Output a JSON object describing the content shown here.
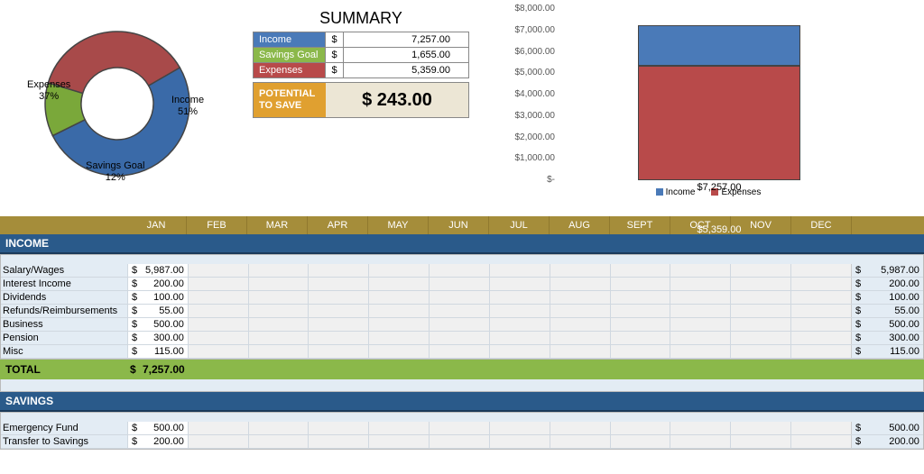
{
  "summary": {
    "title": "SUMMARY",
    "rows": [
      {
        "label": "Income",
        "value": "7,257.00",
        "bg": "#4a7ab8"
      },
      {
        "label": "Savings Goal",
        "value": "1,655.00",
        "bg": "#8bb84a"
      },
      {
        "label": "Expenses",
        "value": "5,359.00",
        "bg": "#b84a4a"
      }
    ],
    "potential_label": "POTENTIAL TO SAVE",
    "potential_value": "$   243.00"
  },
  "donut": {
    "type": "donut",
    "slices": [
      {
        "label": "Income",
        "pct": "51%",
        "color": "#3a6aa8",
        "start": -30,
        "sweep": 183.6
      },
      {
        "label": "Savings Goal",
        "pct": "12%",
        "color": "#7aa83a",
        "start": 153.6,
        "sweep": 43.2
      },
      {
        "label": "Expenses",
        "pct": "37%",
        "color": "#a84a4a",
        "start": 196.8,
        "sweep": 133.2
      }
    ],
    "inner_radius": 40,
    "outer_radius": 80,
    "border_color": "#444444"
  },
  "bar_chart": {
    "type": "stacked-bar",
    "ylim": [
      0,
      8000
    ],
    "ytick_step": 1000,
    "ytick_labels": [
      "$-",
      "$1,000.00",
      "$2,000.00",
      "$3,000.00",
      "$4,000.00",
      "$5,000.00",
      "$6,000.00",
      "$7,000.00",
      "$8,000.00"
    ],
    "series": [
      {
        "name": "Income",
        "color": "#4a7ab8",
        "value": 7257,
        "label": "$7,257.00"
      },
      {
        "name": "Expenses",
        "color": "#b84a4a",
        "value": 5359,
        "label": "$5,359.00"
      }
    ],
    "legend_items": [
      {
        "name": "Income",
        "color": "#4a7ab8"
      },
      {
        "name": "Expenses",
        "color": "#b84a4a"
      }
    ]
  },
  "months": [
    "JAN",
    "FEB",
    "MAR",
    "APR",
    "MAY",
    "JUN",
    "JUL",
    "AUG",
    "SEPT",
    "OCT",
    "NOV",
    "DEC"
  ],
  "income": {
    "title": "INCOME",
    "rows": [
      {
        "label": "Salary/Wages",
        "jan": "5,987.00",
        "total": "5,987.00"
      },
      {
        "label": "Interest Income",
        "jan": "200.00",
        "total": "200.00"
      },
      {
        "label": "Dividends",
        "jan": "100.00",
        "total": "100.00"
      },
      {
        "label": "Refunds/Reimbursements",
        "jan": "55.00",
        "total": "55.00"
      },
      {
        "label": "Business",
        "jan": "500.00",
        "total": "500.00"
      },
      {
        "label": "Pension",
        "jan": "300.00",
        "total": "300.00"
      },
      {
        "label": "Misc",
        "jan": "115.00",
        "total": "115.00"
      }
    ],
    "total_label": "TOTAL",
    "total_value": "7,257.00"
  },
  "savings": {
    "title": "SAVINGS",
    "rows": [
      {
        "label": "Emergency Fund",
        "jan": "500.00",
        "total": "500.00"
      },
      {
        "label": "Transfer to Savings",
        "jan": "200.00",
        "total": "200.00"
      }
    ]
  },
  "colors": {
    "month_header_bg": "#a58d3a",
    "section_title_bg": "#2a5a8a",
    "total_row_bg": "#8bb84a",
    "data_bg": "#e3ecf4"
  }
}
